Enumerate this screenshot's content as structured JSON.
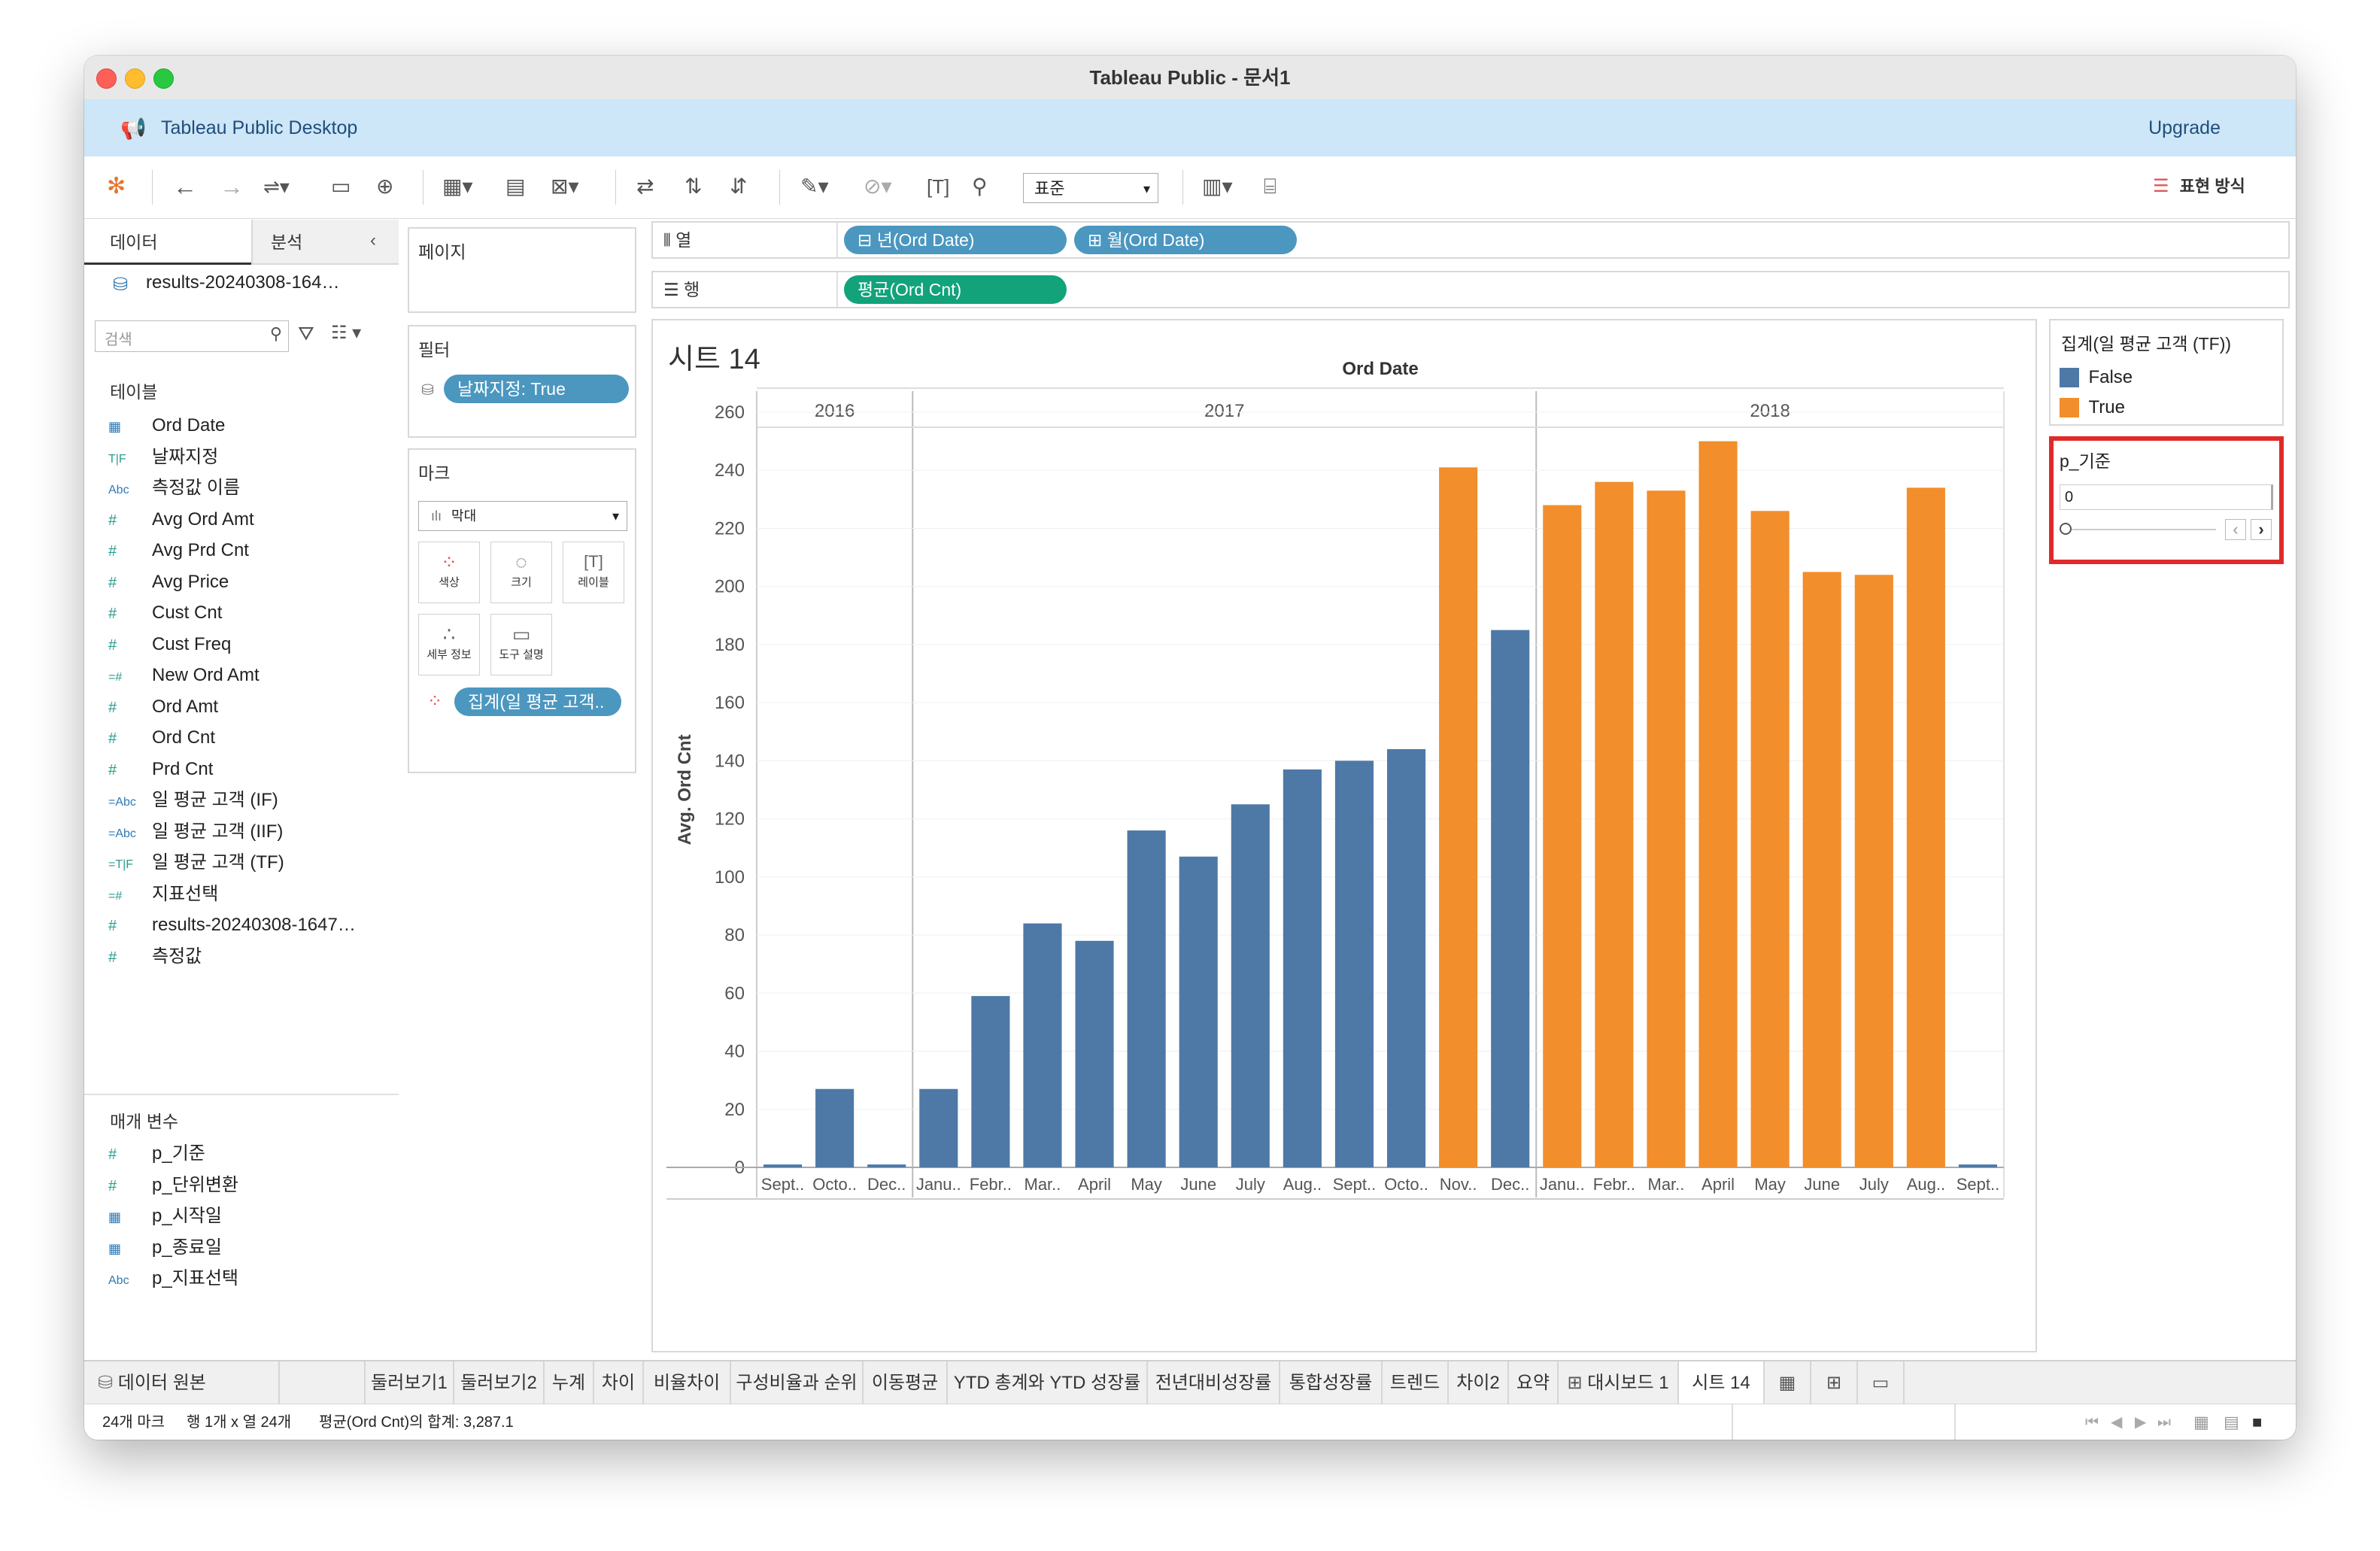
{
  "window": {
    "title": "Tableau Public - 문서1"
  },
  "banner": {
    "app_name": "Tableau Public Desktop",
    "upgrade_label": "Upgrade"
  },
  "toolbar": {
    "fit_value": "표준",
    "show_me_label": "표현 방식"
  },
  "left_pane": {
    "tabs": [
      "데이터",
      "분석"
    ],
    "datasource": "results-20240308-164…",
    "search_placeholder": "검색",
    "tables_label": "테이블",
    "fields": [
      {
        "icon": "calendar",
        "name": "Ord Date"
      },
      {
        "icon": "boolean",
        "name": "날짜지정"
      },
      {
        "icon": "abc",
        "name": "측정값 이름"
      },
      {
        "icon": "hash",
        "name": "Avg Ord Amt"
      },
      {
        "icon": "hash",
        "name": "Avg Prd Cnt"
      },
      {
        "icon": "hash",
        "name": "Avg Price"
      },
      {
        "icon": "hash",
        "name": "Cust Cnt"
      },
      {
        "icon": "hash",
        "name": "Cust Freq"
      },
      {
        "icon": "calc-hash",
        "name": "New Ord Amt"
      },
      {
        "icon": "hash",
        "name": "Ord Amt"
      },
      {
        "icon": "hash",
        "name": "Ord Cnt"
      },
      {
        "icon": "hash",
        "name": "Prd Cnt"
      },
      {
        "icon": "calc-abc",
        "name": "일 평균 고객 (IF)"
      },
      {
        "icon": "calc-abc",
        "name": "일 평균 고객 (IIF)"
      },
      {
        "icon": "calc-boolean",
        "name": "일 평균 고객 (TF)"
      },
      {
        "icon": "calc-hash",
        "name": "지표선택"
      },
      {
        "icon": "hash",
        "name": "results-20240308-1647…"
      },
      {
        "icon": "hash",
        "name": "측정값"
      }
    ],
    "params_label": "매개 변수",
    "params": [
      {
        "icon": "hash",
        "name": "p_기준"
      },
      {
        "icon": "hash",
        "name": "p_단위변환"
      },
      {
        "icon": "calendar",
        "name": "p_시작일"
      },
      {
        "icon": "calendar",
        "name": "p_종료일"
      },
      {
        "icon": "abc",
        "name": "p_지표선택"
      }
    ]
  },
  "pages_label": "페이지",
  "filters": {
    "label": "필터",
    "pill": "날짜지정: True"
  },
  "marks": {
    "label": "마크",
    "type": "막대",
    "buttons": [
      "색상",
      "크기",
      "레이블",
      "세부 정보",
      "도구 설명"
    ],
    "color_pill": "집계(일 평균 고객.."
  },
  "shelves": {
    "columns_label": "열",
    "rows_label": "행",
    "columns_pills": [
      "년(Ord Date)",
      "월(Ord Date)"
    ],
    "rows_pills": [
      "평균(Ord Cnt)"
    ]
  },
  "sheet": {
    "title": "시트 14"
  },
  "chart_data": {
    "type": "bar",
    "header": "Ord Date",
    "ylabel": "Avg. Ord Cnt",
    "ylim": [
      0,
      260
    ],
    "yticks": [
      0,
      20,
      40,
      60,
      80,
      100,
      120,
      140,
      160,
      180,
      200,
      220,
      240,
      260
    ],
    "years": [
      {
        "label": "2016",
        "count": 3
      },
      {
        "label": "2017",
        "count": 12
      },
      {
        "label": "2018",
        "count": 9
      }
    ],
    "categories": [
      "Sept..",
      "Octo..",
      "Dec..",
      "Janu..",
      "Febr..",
      "Mar..",
      "April",
      "May",
      "June",
      "July",
      "Aug..",
      "Sept..",
      "Octo..",
      "Nov..",
      "Dec..",
      "Janu..",
      "Febr..",
      "Mar..",
      "April",
      "May",
      "June",
      "July",
      "Aug..",
      "Sept.."
    ],
    "values": [
      1,
      27,
      1,
      27,
      59,
      84,
      78,
      116,
      107,
      125,
      137,
      140,
      144,
      241,
      185,
      228,
      236,
      233,
      250,
      226,
      205,
      204,
      234,
      1
    ],
    "flags": [
      "False",
      "False",
      "False",
      "False",
      "False",
      "False",
      "False",
      "False",
      "False",
      "False",
      "False",
      "False",
      "False",
      "True",
      "False",
      "True",
      "True",
      "True",
      "True",
      "True",
      "True",
      "True",
      "True",
      "False"
    ],
    "colors": {
      "False": "#4e79a7",
      "True": "#f28e2b"
    }
  },
  "legend": {
    "title": "집계(일 평균 고객 (TF))",
    "items": [
      {
        "label": "False",
        "color": "#4e79a7"
      },
      {
        "label": "True",
        "color": "#f28e2b"
      }
    ]
  },
  "parameter": {
    "title": "p_기준",
    "value": "0"
  },
  "sheet_tabs": [
    "데이터 원본",
    "둘러보기1",
    "둘러보기2",
    "누계",
    "차이",
    "비율차이",
    "구성비율과 순위",
    "이동평균",
    "YTD 총계와 YTD 성장률",
    "전년대비성장률",
    "통합성장률",
    "트렌드",
    "차이2",
    "요약",
    "대시보드 1",
    "시트 14"
  ],
  "status": {
    "marks": "24개 마크",
    "dims": "행 1개 x 열 24개",
    "sum": "평균(Ord Cnt)의 합계: 3,287.1"
  }
}
